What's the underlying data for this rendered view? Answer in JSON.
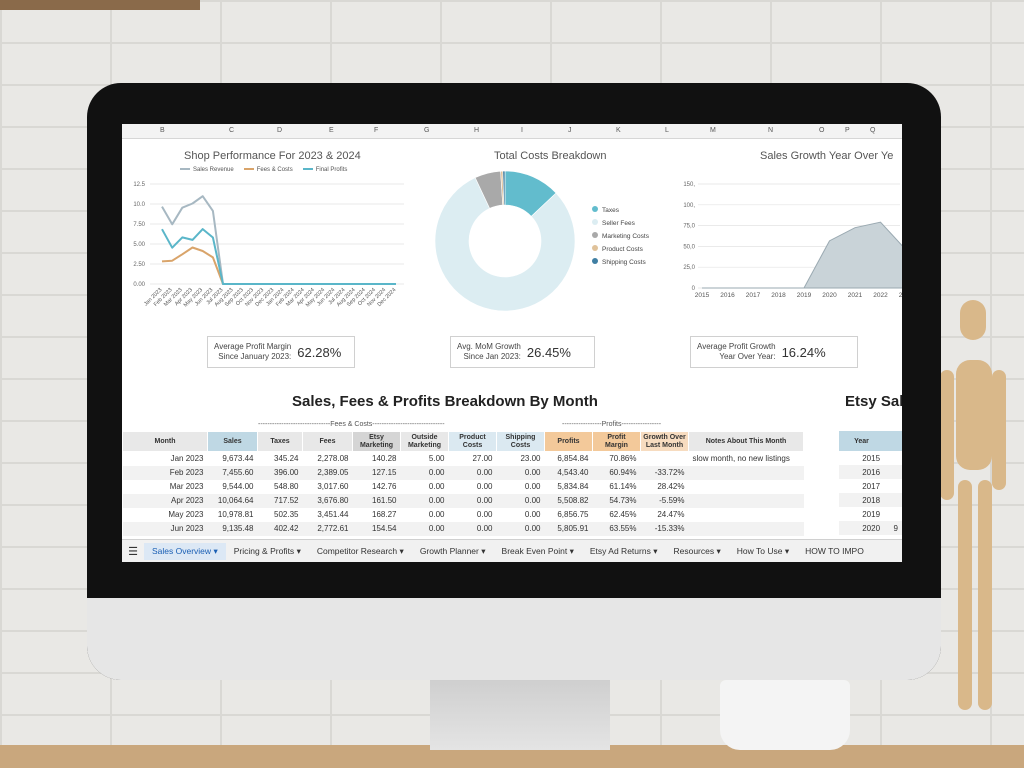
{
  "columns": [
    "B",
    "C",
    "D",
    "E",
    "F",
    "G",
    "H",
    "I",
    "J",
    "K",
    "L",
    "M",
    "N",
    "O",
    "P",
    "Q"
  ],
  "charts": {
    "performance": {
      "title": "Shop Performance For 2023 & 2024",
      "legend": [
        "Sales Revenue",
        "Fees & Costs",
        "Final Profits"
      ],
      "yticks": [
        "12.5",
        "10.0",
        "7.50",
        "5.00",
        "2.50",
        "0.00"
      ]
    },
    "costs": {
      "title": "Total Costs Breakdown",
      "legend": [
        "Taxes",
        "Seller Fees",
        "Marketing Costs",
        "Product Costs",
        "Shipping Costs"
      ]
    },
    "growth": {
      "title": "Sales Growth Year Over Ye",
      "yticks": [
        "150,",
        "100,",
        "75,0",
        "50,0",
        "25,0",
        "0"
      ]
    }
  },
  "chart_data": [
    {
      "type": "line",
      "title": "Shop Performance For 2023 & 2024",
      "x": [
        "Jan 2023",
        "Feb 2023",
        "Mar 2023",
        "Apr 2023",
        "May 2023",
        "Jun 2023",
        "Jul 2023",
        "Aug 2023",
        "Sep 2023",
        "Oct 2023",
        "Nov 2023",
        "Dec 2023",
        "Jan 2024",
        "Feb 2024",
        "Mar 2024",
        "Apr 2024",
        "May 2024",
        "Jun 2024",
        "Jul 2024",
        "Aug 2024",
        "Sep 2024",
        "Oct 2024",
        "Nov 2024",
        "Dec 2024"
      ],
      "series": [
        {
          "name": "Sales Revenue",
          "color": "#a7b8c2",
          "values": [
            9.67,
            7.46,
            9.54,
            10.06,
            10.98,
            9.14,
            0,
            0,
            0,
            0,
            0,
            0,
            0,
            0,
            0,
            0,
            0,
            0,
            0,
            0,
            0,
            0,
            0,
            0
          ]
        },
        {
          "name": "Fees & Costs",
          "color": "#d9a46a",
          "values": [
            2.82,
            2.91,
            3.71,
            4.56,
            4.12,
            3.33,
            0,
            0,
            0,
            0,
            0,
            0,
            0,
            0,
            0,
            0,
            0,
            0,
            0,
            0,
            0,
            0,
            0,
            0
          ]
        },
        {
          "name": "Final Profits",
          "color": "#5ab6c9",
          "values": [
            6.85,
            4.54,
            5.83,
            5.51,
            6.86,
            5.81,
            0,
            0,
            0,
            0,
            0,
            0,
            0,
            0,
            0,
            0,
            0,
            0,
            0,
            0,
            0,
            0,
            0,
            0
          ]
        }
      ],
      "ylim": [
        0,
        12.5
      ]
    },
    {
      "type": "pie",
      "title": "Total Costs Breakdown",
      "categories": [
        "Taxes",
        "Seller Fees",
        "Marketing Costs",
        "Product Costs",
        "Shipping Costs"
      ],
      "values": [
        13,
        80,
        6,
        0.5,
        0.5
      ],
      "colors": [
        "#62bccd",
        "#dcedf2",
        "#a9a9a9",
        "#e0c29a",
        "#3f7fa3"
      ]
    },
    {
      "type": "area",
      "title": "Sales Growth Year Over Ye",
      "x": [
        "2015",
        "2016",
        "2017",
        "2018",
        "2019",
        "2020",
        "2021",
        "2022",
        "2023"
      ],
      "values": [
        0,
        0,
        0,
        0,
        0,
        68,
        87,
        95,
        55
      ],
      "color": "#b8c7cf"
    }
  ],
  "kpis": [
    {
      "label1": "Average Profit Margin",
      "label2": "Since January 2023:",
      "value": "62.28%"
    },
    {
      "label1": "Avg. MoM Growth",
      "label2": "Since Jan 2023:",
      "value": "26.45%"
    },
    {
      "label1": "Average Profit Growth",
      "label2": "Year Over Year:",
      "value": "16.24%"
    }
  ],
  "table": {
    "title": "Sales, Fees & Profits Breakdown By Month",
    "fees_group": "-------------------------------Fees & Costs-------------------------------",
    "profits_group": "-----------------Profits-----------------",
    "headers": {
      "month": "Month",
      "sales": "Sales",
      "taxes": "Taxes",
      "fees": "Fees",
      "etsy_mkt": "Etsy Marketing",
      "outside_mkt": "Outside Marketing",
      "product": "Product Costs",
      "shipping": "Shipping Costs",
      "profits": "Profits",
      "margin": "Profit Margin",
      "growth": "Growth Over Last Month",
      "notes": "Notes About This Month"
    },
    "rows": [
      {
        "month": "Jan 2023",
        "sales": "9,673.44",
        "taxes": "345.24",
        "fees": "2,278.08",
        "etsy": "140.28",
        "outside": "5.00",
        "product": "27.00",
        "shipping": "23.00",
        "profits": "6,854.84",
        "margin": "70.86%",
        "growth": "",
        "note": "slow month, no new listings"
      },
      {
        "month": "Feb 2023",
        "sales": "7,455.60",
        "taxes": "396.00",
        "fees": "2,389.05",
        "etsy": "127.15",
        "outside": "0.00",
        "product": "0.00",
        "shipping": "0.00",
        "profits": "4,543.40",
        "margin": "60.94%",
        "growth": "-33.72%",
        "note": ""
      },
      {
        "month": "Mar 2023",
        "sales": "9,544.00",
        "taxes": "548.80",
        "fees": "3,017.60",
        "etsy": "142.76",
        "outside": "0.00",
        "product": "0.00",
        "shipping": "0.00",
        "profits": "5,834.84",
        "margin": "61.14%",
        "growth": "28.42%",
        "note": ""
      },
      {
        "month": "Apr 2023",
        "sales": "10,064.64",
        "taxes": "717.52",
        "fees": "3,676.80",
        "etsy": "161.50",
        "outside": "0.00",
        "product": "0.00",
        "shipping": "0.00",
        "profits": "5,508.82",
        "margin": "54.73%",
        "growth": "-5.59%",
        "note": ""
      },
      {
        "month": "May 2023",
        "sales": "10,978.81",
        "taxes": "502.35",
        "fees": "3,451.44",
        "etsy": "168.27",
        "outside": "0.00",
        "product": "0.00",
        "shipping": "0.00",
        "profits": "6,856.75",
        "margin": "62.45%",
        "growth": "24.47%",
        "note": ""
      },
      {
        "month": "Jun 2023",
        "sales": "9,135.48",
        "taxes": "402.42",
        "fees": "2,772.61",
        "etsy": "154.54",
        "outside": "0.00",
        "product": "0.00",
        "shipping": "0.00",
        "profits": "5,805.91",
        "margin": "63.55%",
        "growth": "-15.33%",
        "note": ""
      }
    ]
  },
  "yearly": {
    "title": "Etsy Sal",
    "header": "Year",
    "years": [
      "2015",
      "2016",
      "2017",
      "2018",
      "2019",
      "2020"
    ],
    "last_value_fragment": "9"
  },
  "tabs": [
    "Sales Overview",
    "Pricing & Profits",
    "Competitor Research",
    "Growth Planner",
    "Break Even Point",
    "Etsy Ad Returns",
    "Resources",
    "How To Use",
    "HOW TO IMPO"
  ]
}
